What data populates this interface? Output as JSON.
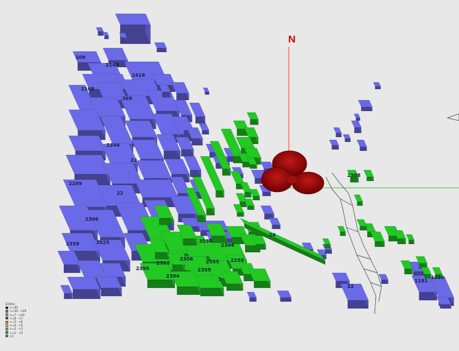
{
  "north": {
    "label": "N"
  },
  "building_labels": [
    "109",
    "2149",
    "2416",
    "2168",
    "369",
    "2244",
    "22",
    "2299",
    "2306",
    "2359",
    "3525",
    "22",
    "2304",
    "2395",
    "24",
    "3534",
    "2304",
    "2555",
    "2306",
    "7",
    "2388",
    "2258",
    "2359",
    "32",
    "1181",
    "1210",
    "2308"
  ],
  "legend": {
    "title": "E(V/m)",
    "items": [
      {
        "label": ">=20",
        "color": "#000000"
      },
      {
        "label": ">=10 - <20",
        "color": "#8a8a00"
      },
      {
        "label": ">=7 - <10",
        "color": "#b0b0b0"
      },
      {
        "label": ">=6 - <7",
        "color": "#e00000"
      },
      {
        "label": ">=5 - <6",
        "color": "#ff8c00"
      },
      {
        "label": ">=4 - <5",
        "color": "#ffff00"
      },
      {
        "label": ">=2 - <3",
        "color": "#9acd32"
      },
      {
        "label": ">=1 - <2",
        "color": "#00c000"
      },
      {
        "label": "<1",
        "color": "#6a6ae8"
      }
    ]
  },
  "colors": {
    "background": "#e8e8e8",
    "building_blue": "#6a6ae8",
    "building_green": "#22c922",
    "antenna_lobe": "#8b0000",
    "north_axis": "#ff4040",
    "east_axis": "#40d040"
  }
}
